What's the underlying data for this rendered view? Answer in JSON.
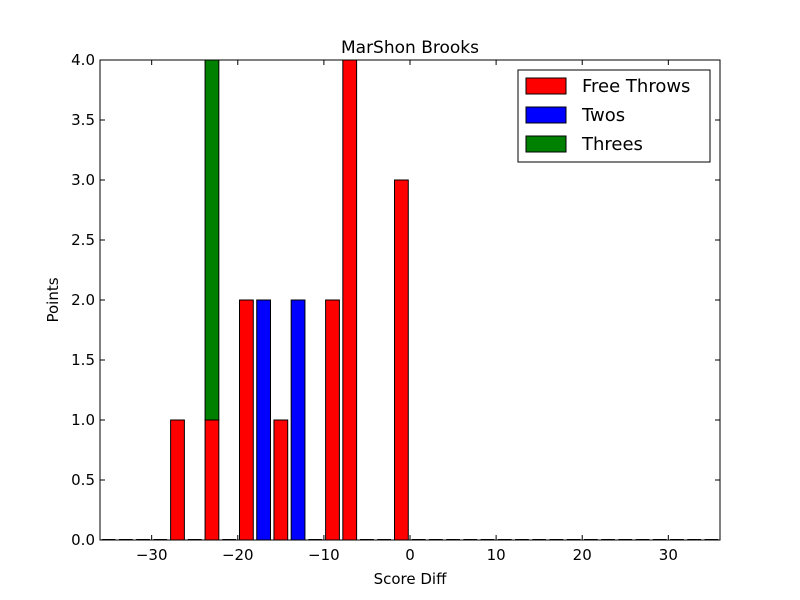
{
  "chart_data": {
    "type": "bar",
    "title": "MarShon Brooks",
    "xlabel": "Score Diff",
    "ylabel": "Points",
    "xlim": [
      -36,
      36
    ],
    "ylim": [
      0,
      4
    ],
    "xticks": [
      -30,
      -20,
      -10,
      0,
      10,
      20,
      30
    ],
    "xtick_labels": [
      "−30",
      "−20",
      "−10",
      "0",
      "10",
      "20",
      "30"
    ],
    "yticks": [
      0,
      0.5,
      1,
      1.5,
      2,
      2.5,
      3,
      3.5,
      4
    ],
    "ytick_labels": [
      "0.0",
      "0.5",
      "1.0",
      "1.5",
      "2.0",
      "2.5",
      "3.0",
      "3.5",
      "4.0"
    ],
    "bar_width": 1.6,
    "legend_position": "top-right",
    "grid": false,
    "series": [
      {
        "name": "Free Throws",
        "color": "#ff0000",
        "points": [
          {
            "x": -27,
            "y": 1
          },
          {
            "x": -23,
            "y": 1
          },
          {
            "x": -19,
            "y": 2
          },
          {
            "x": -15,
            "y": 1
          },
          {
            "x": -9,
            "y": 2
          },
          {
            "x": -7,
            "y": 4
          },
          {
            "x": -1,
            "y": 3
          }
        ]
      },
      {
        "name": "Twos",
        "color": "#0000ff",
        "points": [
          {
            "x": -17,
            "y": 2
          },
          {
            "x": -13,
            "y": 2
          }
        ]
      },
      {
        "name": "Threes",
        "color": "#008000",
        "points": [
          {
            "x": -23,
            "y": 3
          }
        ]
      }
    ]
  }
}
